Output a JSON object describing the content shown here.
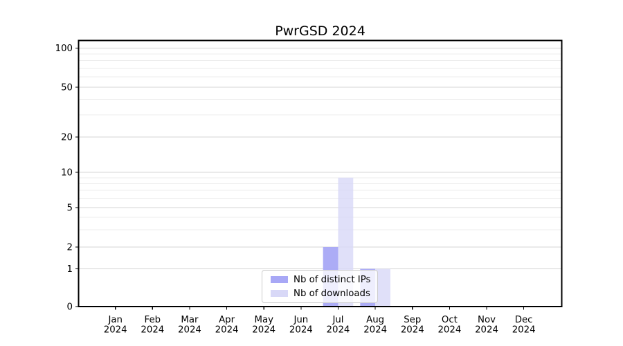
{
  "figure": {
    "background": "#ffffff",
    "text_color": "#000000",
    "grid_major_color": "#d4d4d4",
    "grid_minor_color": "#ececec",
    "spine_color": "#000000"
  },
  "chart_data": {
    "type": "bar",
    "title": "PwrGSD 2024",
    "xlabel": "",
    "ylabel": "",
    "categories": [
      "Jan 2024",
      "Feb 2024",
      "Mar 2024",
      "Apr 2024",
      "May 2024",
      "Jun 2024",
      "Jul 2024",
      "Aug 2024",
      "Sep 2024",
      "Oct 2024",
      "Nov 2024",
      "Dec 2024"
    ],
    "series": [
      {
        "name": "Nb of distinct IPs",
        "color": "#a8a8f6",
        "values": [
          0,
          0,
          0,
          0,
          0,
          0,
          2,
          1,
          0,
          0,
          0,
          0
        ]
      },
      {
        "name": "Nb of downloads",
        "color": "#d8d8f7",
        "values": [
          0,
          0,
          0,
          0,
          0,
          0,
          9,
          1,
          0,
          0,
          0,
          0
        ]
      }
    ],
    "yticks": [
      0,
      1,
      2,
      5,
      10,
      20,
      50,
      100
    ],
    "ylim": [
      0,
      130
    ],
    "yscale": "symlog",
    "grid": "horizontal major and minor gridlines",
    "legend": {
      "position": "inside-bottom-center",
      "border_color": "#cccccc",
      "background": "rgba(255,255,255,0.8)"
    }
  }
}
